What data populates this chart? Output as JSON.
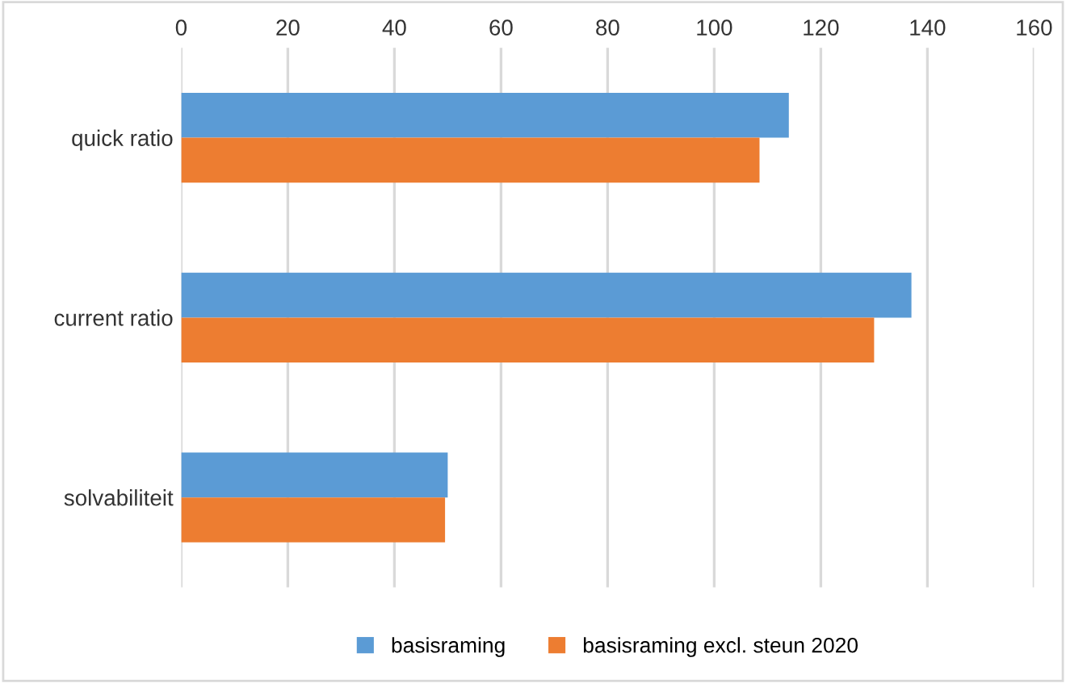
{
  "chart_data": {
    "type": "bar",
    "orientation": "horizontal",
    "categories": [
      "quick ratio",
      "current ratio",
      "solvabiliteit"
    ],
    "series": [
      {
        "name": "basisraming",
        "color": "#5b9bd5",
        "values": [
          114,
          137,
          50
        ]
      },
      {
        "name": "basisraming excl. steun 2020",
        "color": "#ed7d31",
        "values": [
          108.5,
          130,
          49.5
        ]
      }
    ],
    "xlim": [
      0,
      160
    ],
    "xticks": [
      0,
      20,
      40,
      60,
      80,
      100,
      120,
      140,
      160
    ],
    "grid": "x",
    "legend": "bottom"
  }
}
